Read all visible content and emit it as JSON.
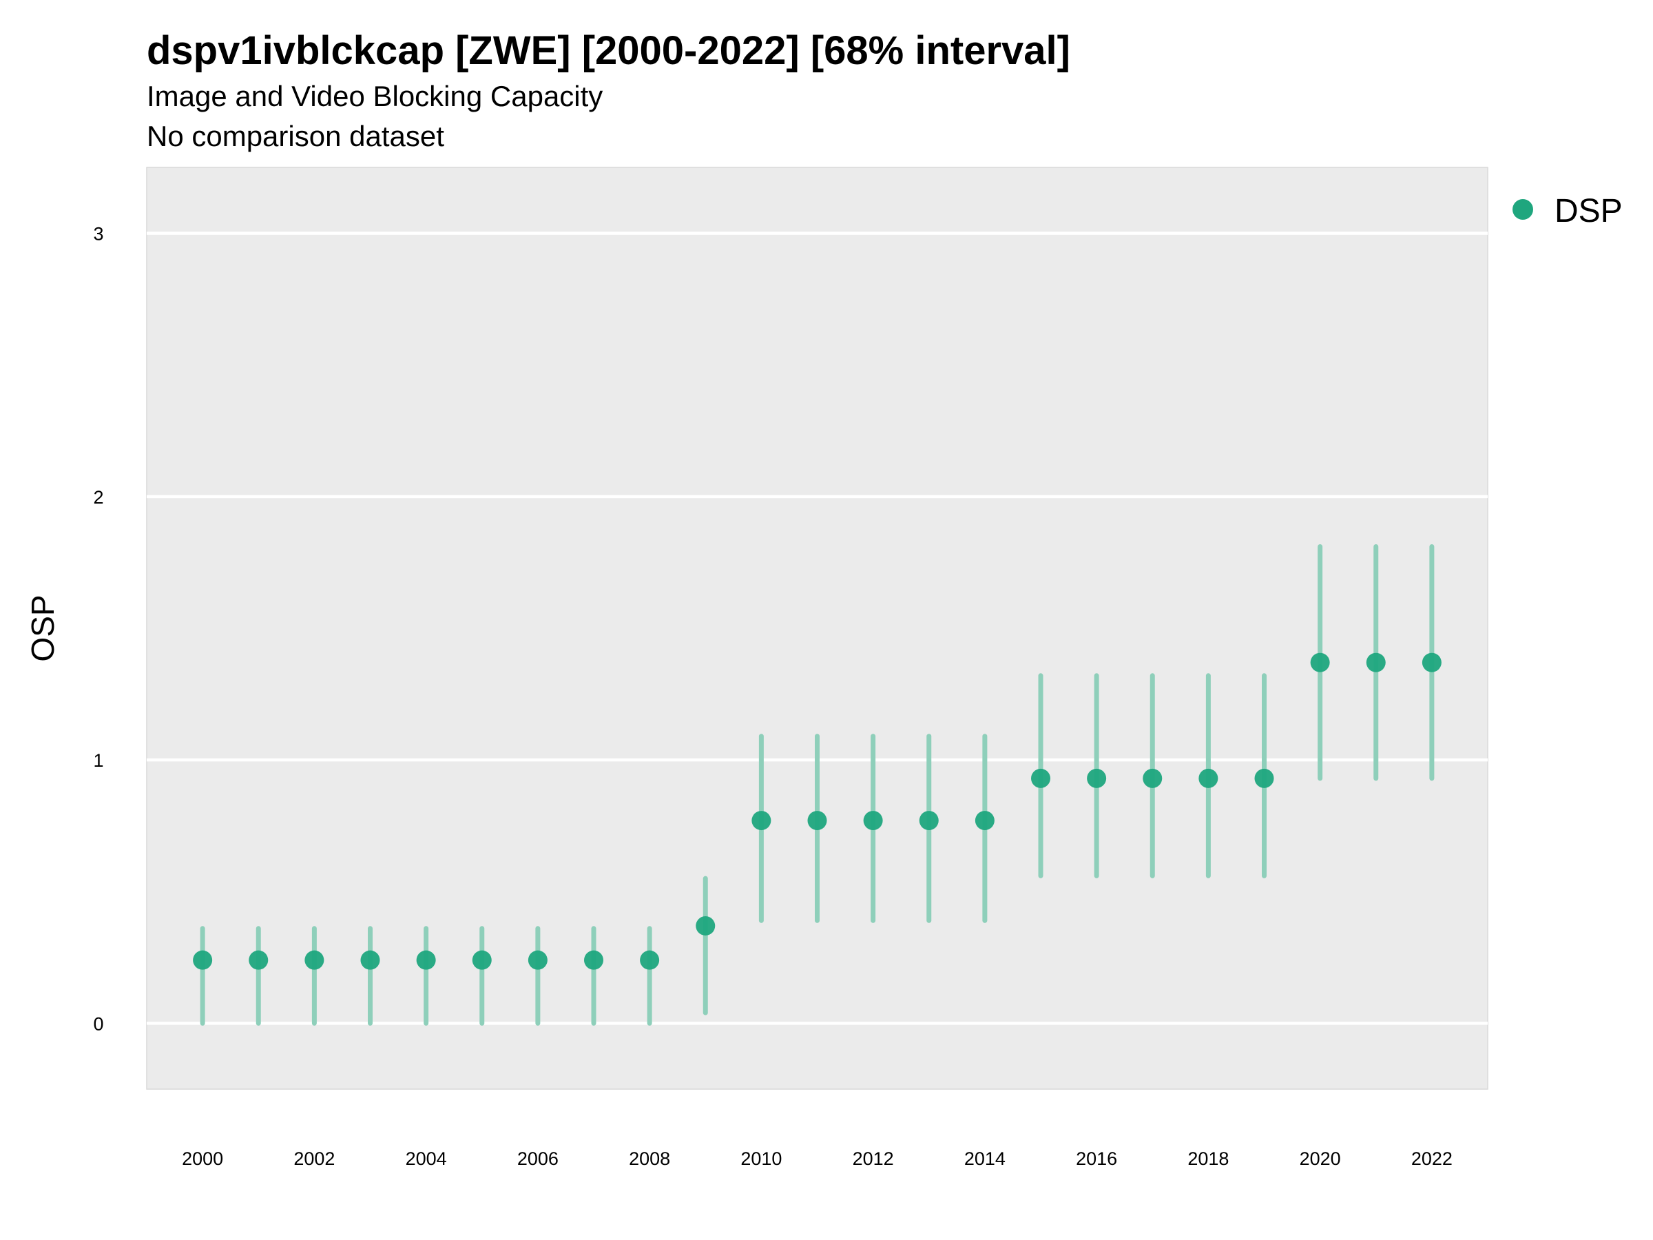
{
  "chart_data": {
    "type": "scatter",
    "title": "dspv1ivblckcap [ZWE] [2000-2022] [68% interval]",
    "subtitle": "Image and Video Blocking Capacity",
    "caption": "No comparison dataset",
    "xlabel": "",
    "ylabel": "OSP",
    "xlim": [
      1999.0,
      2023.0
    ],
    "ylim": [
      -0.25,
      3.25
    ],
    "x_ticks": [
      2000,
      2002,
      2004,
      2006,
      2008,
      2010,
      2012,
      2014,
      2016,
      2018,
      2020,
      2022
    ],
    "y_ticks": [
      0,
      1,
      2,
      3
    ],
    "grid": true,
    "legend_position": "top-right",
    "panel_color": "#EBEBEB",
    "point_color": "#1FA67E",
    "interval_color": "#8ECFBA",
    "series": [
      {
        "name": "DSP",
        "x": [
          2000,
          2001,
          2002,
          2003,
          2004,
          2005,
          2006,
          2007,
          2008,
          2009,
          2010,
          2011,
          2012,
          2013,
          2014,
          2015,
          2016,
          2017,
          2018,
          2019,
          2020,
          2021,
          2022
        ],
        "y": [
          0.24,
          0.24,
          0.24,
          0.24,
          0.24,
          0.24,
          0.24,
          0.24,
          0.24,
          0.37,
          0.77,
          0.77,
          0.77,
          0.77,
          0.77,
          0.93,
          0.93,
          0.93,
          0.93,
          0.93,
          1.37,
          1.37,
          1.37
        ],
        "lower": [
          0.0,
          0.0,
          0.0,
          0.0,
          0.0,
          0.0,
          0.0,
          0.0,
          0.0,
          0.04,
          0.39,
          0.39,
          0.39,
          0.39,
          0.39,
          0.56,
          0.56,
          0.56,
          0.56,
          0.56,
          0.93,
          0.93,
          0.93
        ],
        "upper": [
          0.36,
          0.36,
          0.36,
          0.36,
          0.36,
          0.36,
          0.36,
          0.36,
          0.36,
          0.55,
          1.09,
          1.09,
          1.09,
          1.09,
          1.09,
          1.32,
          1.32,
          1.32,
          1.32,
          1.32,
          1.81,
          1.81,
          1.81
        ]
      }
    ]
  }
}
